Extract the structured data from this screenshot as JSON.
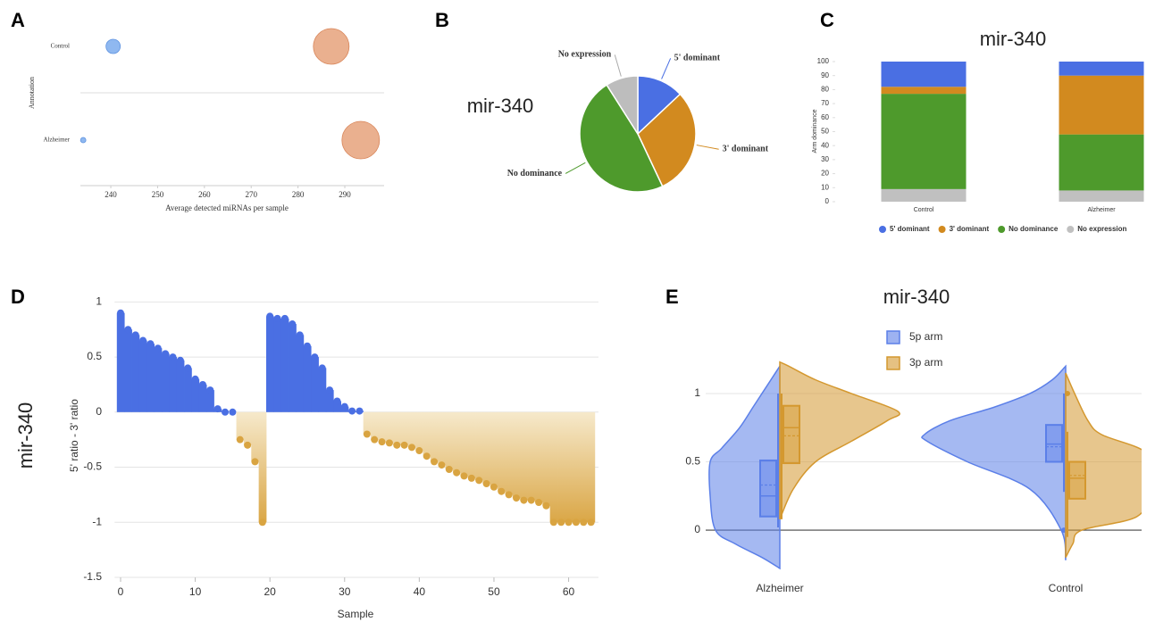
{
  "chart_data": [
    {
      "label": "A",
      "type": "bubble",
      "xlabel": "Average detected miRNAs per sample",
      "ylabel": "Annotation",
      "categories": [
        "Control",
        "Alzheimer"
      ],
      "xlim": [
        233.5,
        298.4
      ],
      "xticks": [
        240,
        250,
        260,
        270,
        280,
        290
      ],
      "series": [
        {
          "color": "#8fb8f0",
          "values": [
            240.5,
            234.1
          ],
          "sizes": [
            8,
            3
          ]
        },
        {
          "color": "#eab08f",
          "values": [
            287.1,
            293.4
          ],
          "sizes": [
            20,
            21
          ]
        }
      ]
    },
    {
      "label": "B",
      "type": "pie",
      "title": "mir-340",
      "categories": [
        "5' dominant",
        "3' dominant",
        "No dominance",
        "No expression"
      ],
      "values": [
        13,
        30,
        48,
        9
      ],
      "colors": [
        "#4a6fe3",
        "#d28a1f",
        "#4e9a2c",
        "#bdbdbd"
      ]
    },
    {
      "label": "C",
      "type": "stacked_bar",
      "title": "mir-340",
      "ylabel": "Arm dominance",
      "categories": [
        "Control",
        "Alzheimer"
      ],
      "ylim": [
        0,
        100
      ],
      "yticks": [
        0,
        10,
        20,
        30,
        40,
        50,
        60,
        70,
        80,
        90,
        100
      ],
      "legend": "bottom",
      "series": [
        {
          "name": "5' dominant",
          "color": "#4a6fe3",
          "values": [
            18,
            10
          ]
        },
        {
          "name": "3' dominant",
          "color": "#d28a1f",
          "values": [
            5,
            42
          ]
        },
        {
          "name": "No dominance",
          "color": "#4e9a2c",
          "values": [
            68,
            40
          ]
        },
        {
          "name": "No expression",
          "color": "#c0c0c0",
          "values": [
            9,
            8
          ]
        }
      ]
    },
    {
      "label": "D",
      "type": "lollipop",
      "side_label": "mir-340",
      "xlabel": "Sample",
      "ylabel": "5' ratio - 3' ratio",
      "x": [
        0,
        1,
        2,
        3,
        4,
        5,
        6,
        7,
        8,
        9,
        10,
        11,
        12,
        13,
        14,
        15,
        16,
        17,
        18,
        19,
        20,
        21,
        22,
        23,
        24,
        25,
        26,
        27,
        28,
        29,
        30,
        31,
        32,
        33,
        34,
        35,
        36,
        37,
        38,
        39,
        40,
        41,
        42,
        43,
        44,
        45,
        46,
        47,
        48,
        49,
        50,
        51,
        52,
        53,
        54,
        55,
        56,
        57,
        58,
        59,
        60,
        61,
        62,
        63
      ],
      "values": [
        0.9,
        0.75,
        0.7,
        0.65,
        0.62,
        0.58,
        0.53,
        0.5,
        0.47,
        0.4,
        0.3,
        0.25,
        0.2,
        0.03,
        0,
        0,
        -0.25,
        -0.3,
        -0.45,
        -1,
        0.87,
        0.85,
        0.85,
        0.8,
        0.7,
        0.6,
        0.5,
        0.4,
        0.2,
        0.1,
        0.05,
        0.01,
        0.01,
        -0.2,
        -0.25,
        -0.27,
        -0.28,
        -0.3,
        -0.3,
        -0.32,
        -0.35,
        -0.4,
        -0.45,
        -0.48,
        -0.52,
        -0.55,
        -0.58,
        -0.6,
        -0.62,
        -0.65,
        -0.68,
        -0.72,
        -0.75,
        -0.78,
        -0.8,
        -0.8,
        -0.82,
        -0.85,
        -1,
        -1,
        -1,
        -1,
        -1,
        -1
      ],
      "xlim": [
        -0.8,
        64
      ],
      "xticks": [
        0,
        10,
        20,
        30,
        40,
        50,
        60
      ],
      "ylim": [
        -1.5,
        1.1
      ],
      "yticks": [
        1,
        0.5,
        0,
        -0.5,
        -1,
        -1.5
      ],
      "grid": true,
      "positive_color": "#4a6fe3",
      "negative_color": "#d9a441"
    },
    {
      "label": "E",
      "type": "split_violin",
      "title": "mir-340",
      "categories": [
        "Alzheimer",
        "Control"
      ],
      "ylim": [
        -0.3,
        1.3
      ],
      "yticks": [
        0,
        0.5,
        1
      ],
      "grid": true,
      "series": [
        {
          "name": "5p arm",
          "color": "#5b7fe8",
          "violins": [
            {
              "y": [
                -0.28,
                -0.2,
                -0.1,
                0,
                0.25,
                0.5,
                0.6,
                0.75,
                0.9,
                1,
                1.1,
                1.2
              ],
              "density": [
                0,
                20,
                50,
                72,
                78,
                78,
                65,
                45,
                30,
                20,
                10,
                0
              ],
              "q1": 0.1,
              "median": 0.25,
              "q3": 0.51,
              "mean": 0.33,
              "whisker": [
                0.02,
                1
              ],
              "outliers": []
            },
            {
              "y": [
                -0.22,
                0,
                0.3,
                0.5,
                0.65,
                0.7,
                0.8,
                0.9,
                1,
                1.1,
                1.2
              ],
              "density": [
                0,
                5,
                40,
                110,
                155,
                158,
                130,
                80,
                40,
                15,
                0
              ],
              "q1": 0.5,
              "median": 0.63,
              "q3": 0.77,
              "mean": 0.61,
              "whisker": [
                0.28,
                1
              ],
              "outliers": [
                0
              ]
            }
          ]
        },
        {
          "name": "3p arm",
          "color": "#d4982f",
          "violins": [
            {
              "y": [
                0.08,
                0.3,
                0.5,
                0.65,
                0.8,
                0.87,
                1,
                1.1,
                1.2,
                1.23
              ],
              "density": [
                0,
                15,
                40,
                80,
                120,
                132,
                80,
                40,
                10,
                0
              ],
              "q1": 0.49,
              "median": 0.75,
              "q3": 0.91,
              "mean": 0.69,
              "whisker": [
                0.08,
                1
              ],
              "outliers": []
            },
            {
              "y": [
                -0.2,
                -0.1,
                0,
                0.1,
                0.3,
                0.5,
                0.6,
                0.7,
                0.8,
                1,
                1.15
              ],
              "density": [
                0,
                8,
                18,
                80,
                95,
                100,
                82,
                40,
                25,
                10,
                0
              ],
              "q1": 0.23,
              "median": 0.38,
              "q3": 0.5,
              "mean": 0.4,
              "whisker": [
                -0.05,
                0.72
              ],
              "outliers": [
                1
              ]
            }
          ]
        }
      ]
    }
  ]
}
